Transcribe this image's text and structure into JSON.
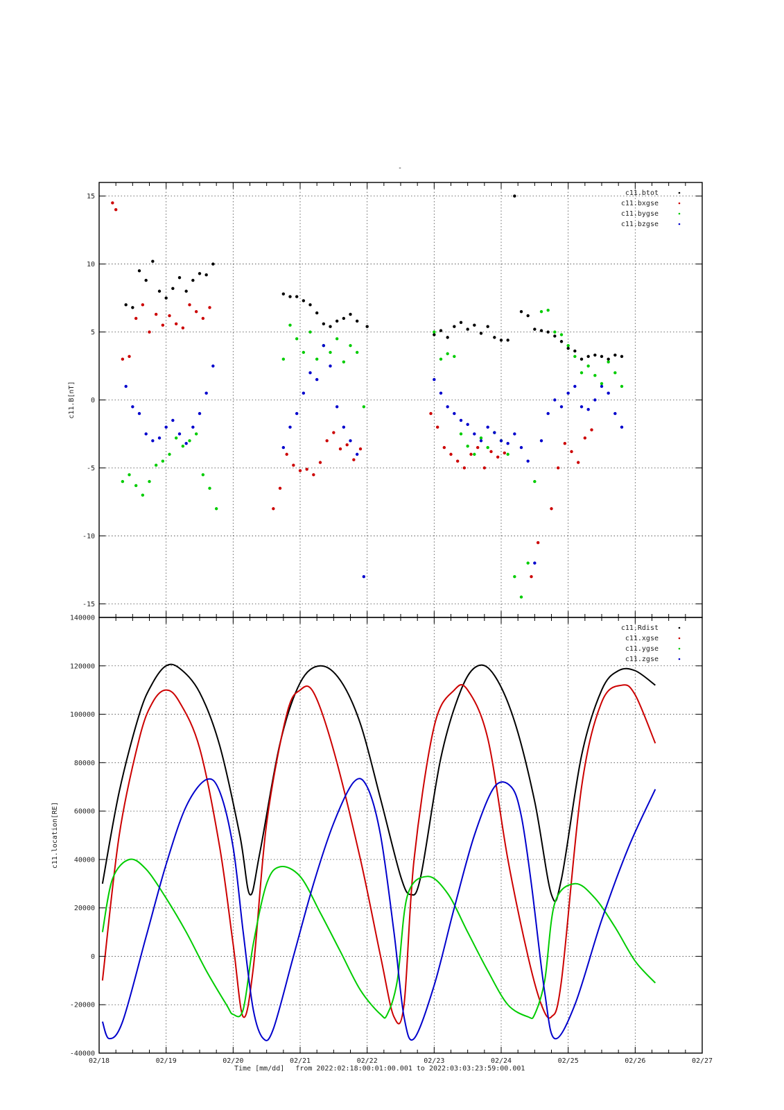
{
  "top_mark": "-",
  "footer": {
    "xlabel_prefix": "Time [mm/dd]",
    "range_text": "from 2022:02:18:00:01:00.001  to  2022:03:03:23:59:00.001"
  },
  "x_axis": {
    "ticks": [
      "02/18",
      "02/19",
      "02/20",
      "02/21",
      "02/22",
      "02/23",
      "02/24",
      "02/25",
      "02/26",
      "02/27"
    ],
    "range_days": [
      0,
      9
    ]
  },
  "chart_data": [
    {
      "type": "scatter",
      "ylabel": "c11.B[nT]",
      "ylim": [
        -16,
        16
      ],
      "yticks": [
        15,
        10,
        5,
        0,
        -5,
        -10,
        -15
      ],
      "grid": true,
      "legend_position": "top-right",
      "series": [
        {
          "name": "c11.btot",
          "color": "#000000",
          "x": [
            0.4,
            0.5,
            0.6,
            0.7,
            0.8,
            0.9,
            1.0,
            1.1,
            1.2,
            1.3,
            1.4,
            1.5,
            1.6,
            1.7,
            2.75,
            2.85,
            2.95,
            3.05,
            3.15,
            3.25,
            3.35,
            3.45,
            3.55,
            3.65,
            3.75,
            3.85,
            4.0,
            5.0,
            5.1,
            5.2,
            5.3,
            5.4,
            5.5,
            5.6,
            5.7,
            5.8,
            5.9,
            6.0,
            6.1,
            6.2,
            6.3,
            6.4,
            6.5,
            6.6,
            6.7,
            6.8,
            6.9,
            7.0,
            7.1,
            7.2,
            7.3,
            7.4,
            7.5,
            7.6,
            7.7,
            7.8
          ],
          "y": [
            7.0,
            6.8,
            9.5,
            8.8,
            10.2,
            8.0,
            7.5,
            8.2,
            9.0,
            8.0,
            8.8,
            9.3,
            9.2,
            10.0,
            7.8,
            7.6,
            7.6,
            7.3,
            7.0,
            6.4,
            5.6,
            5.4,
            5.8,
            6.0,
            6.3,
            5.8,
            5.4,
            4.8,
            5.1,
            4.6,
            5.4,
            5.7,
            5.2,
            5.5,
            4.9,
            5.4,
            4.6,
            4.4,
            4.4,
            15.0,
            6.5,
            6.2,
            5.2,
            5.1,
            5.0,
            4.7,
            4.3,
            3.8,
            3.6,
            3.0,
            3.2,
            3.3,
            3.2,
            3.0,
            3.3,
            3.2
          ]
        },
        {
          "name": "c11.bxgse",
          "color": "#cc0000",
          "x": [
            0.2,
            0.25,
            0.35,
            0.45,
            0.55,
            0.65,
            0.75,
            0.85,
            0.95,
            1.05,
            1.15,
            1.25,
            1.35,
            1.45,
            1.55,
            1.65,
            2.6,
            2.7,
            2.8,
            2.9,
            3.0,
            3.1,
            3.2,
            3.3,
            3.4,
            3.5,
            3.6,
            3.7,
            3.8,
            3.9,
            4.95,
            5.05,
            5.15,
            5.25,
            5.35,
            5.45,
            5.55,
            5.65,
            5.75,
            5.85,
            5.95,
            6.05,
            6.45,
            6.55,
            6.75,
            6.85,
            6.95,
            7.05,
            7.15,
            7.25,
            7.35
          ],
          "y": [
            14.5,
            14.0,
            3.0,
            3.2,
            6.0,
            7.0,
            5.0,
            6.3,
            5.5,
            6.2,
            5.6,
            5.3,
            7.0,
            6.5,
            6.0,
            6.8,
            -8.0,
            -6.5,
            -4.0,
            -4.8,
            -5.2,
            -5.1,
            -5.5,
            -4.6,
            -3.0,
            -2.4,
            -3.6,
            -3.3,
            -4.4,
            -3.6,
            -1.0,
            -2.0,
            -3.5,
            -4.0,
            -4.5,
            -5.0,
            -4.0,
            -3.5,
            -5.0,
            -3.8,
            -4.2,
            -3.9,
            -13.0,
            -10.5,
            -8.0,
            -5.0,
            -3.2,
            -3.8,
            -4.6,
            -2.8,
            -2.2
          ]
        },
        {
          "name": "c11.bygse",
          "color": "#00cc00",
          "x": [
            0.35,
            0.45,
            0.55,
            0.65,
            0.75,
            0.85,
            0.95,
            1.05,
            1.15,
            1.25,
            1.35,
            1.45,
            1.55,
            1.65,
            1.75,
            2.75,
            2.85,
            2.95,
            3.05,
            3.15,
            3.25,
            3.35,
            3.45,
            3.55,
            3.65,
            3.75,
            3.85,
            3.95,
            5.0,
            5.1,
            5.2,
            5.3,
            5.4,
            5.5,
            5.6,
            5.7,
            5.8,
            5.9,
            6.0,
            6.1,
            6.2,
            6.3,
            6.4,
            6.5,
            6.6,
            6.7,
            6.8,
            6.9,
            7.0,
            7.1,
            7.2,
            7.3,
            7.4,
            7.5,
            7.6,
            7.7,
            7.8
          ],
          "y": [
            -6.0,
            -5.5,
            -6.3,
            -7.0,
            -6.0,
            -4.8,
            -4.5,
            -4.0,
            -2.8,
            -3.4,
            -3.0,
            -2.5,
            -5.5,
            -6.5,
            -8.0,
            3.0,
            5.5,
            4.5,
            3.5,
            5.0,
            3.0,
            4.0,
            3.5,
            4.5,
            2.8,
            4.0,
            3.5,
            -0.5,
            5.0,
            3.0,
            3.4,
            3.2,
            -2.5,
            -3.4,
            -4.0,
            -2.8,
            -3.5,
            -2.4,
            -3.0,
            -4.0,
            -13.0,
            -14.5,
            -12.0,
            -6.0,
            6.5,
            6.6,
            5.0,
            4.8,
            4.0,
            3.2,
            2.0,
            2.5,
            1.8,
            1.2,
            2.8,
            2.0,
            1.0
          ]
        },
        {
          "name": "c11.bzgse",
          "color": "#0000cc",
          "x": [
            0.4,
            0.5,
            0.6,
            0.7,
            0.8,
            0.9,
            1.0,
            1.1,
            1.2,
            1.3,
            1.4,
            1.5,
            1.6,
            1.7,
            2.75,
            2.85,
            2.95,
            3.05,
            3.15,
            3.25,
            3.35,
            3.45,
            3.55,
            3.65,
            3.75,
            3.85,
            3.95,
            5.0,
            5.1,
            5.2,
            5.3,
            5.4,
            5.5,
            5.6,
            5.7,
            5.8,
            5.9,
            6.0,
            6.1,
            6.2,
            6.3,
            6.4,
            6.5,
            6.6,
            6.7,
            6.8,
            6.9,
            7.0,
            7.1,
            7.2,
            7.3,
            7.4,
            7.5,
            7.6,
            7.7,
            7.8
          ],
          "y": [
            1.0,
            -0.5,
            -1.0,
            -2.5,
            -3.0,
            -2.8,
            -2.0,
            -1.5,
            -2.5,
            -3.2,
            -2.0,
            -1.0,
            0.5,
            2.5,
            -3.5,
            -2.0,
            -1.0,
            0.5,
            2.0,
            1.5,
            4.0,
            2.5,
            -0.5,
            -2.0,
            -3.0,
            -4.0,
            -13.0,
            1.5,
            0.5,
            -0.5,
            -1.0,
            -1.5,
            -1.8,
            -2.5,
            -3.0,
            -2.0,
            -2.4,
            -3.0,
            -3.2,
            -2.5,
            -3.5,
            -4.5,
            -12.0,
            -3.0,
            -1.0,
            0.0,
            -0.5,
            0.5,
            1.0,
            -0.5,
            -0.7,
            0.0,
            1.0,
            0.5,
            -1.0,
            -2.0
          ]
        }
      ]
    },
    {
      "type": "line",
      "ylabel": "c11.location[RE]",
      "ylim": [
        -40000,
        140000
      ],
      "yticks": [
        140000,
        120000,
        100000,
        80000,
        60000,
        40000,
        20000,
        0,
        -20000,
        -40000
      ],
      "grid": true,
      "legend_position": "top-right",
      "series": [
        {
          "name": "c11.Rdist",
          "color": "#000000",
          "x": [
            0.05,
            0.3,
            0.6,
            0.8,
            1.0,
            1.2,
            1.5,
            1.8,
            2.1,
            2.25,
            2.4,
            2.7,
            3.0,
            3.3,
            3.6,
            3.9,
            4.2,
            4.5,
            4.65,
            4.8,
            5.1,
            5.4,
            5.65,
            5.9,
            6.2,
            6.5,
            6.75,
            6.9,
            7.2,
            7.5,
            7.75,
            8.0,
            8.3
          ],
          "y": [
            30000,
            68000,
            100000,
            113000,
            120000,
            119000,
            109000,
            87000,
            50000,
            25500,
            43000,
            88000,
            113000,
            120000,
            114000,
            96000,
            65000,
            33000,
            25500,
            33000,
            82000,
            110000,
            120000,
            116000,
            97000,
            64000,
            25500,
            32000,
            83000,
            110000,
            118000,
            118000,
            112000
          ]
        },
        {
          "name": "c11.xgse",
          "color": "#cc0000",
          "x": [
            0.05,
            0.3,
            0.6,
            0.8,
            1.0,
            1.2,
            1.5,
            1.8,
            2.0,
            2.15,
            2.3,
            2.5,
            2.8,
            3.0,
            3.2,
            3.5,
            3.9,
            4.2,
            4.4,
            4.55,
            4.7,
            5.0,
            5.3,
            5.5,
            5.8,
            6.1,
            6.4,
            6.6,
            6.75,
            6.9,
            7.2,
            7.5,
            7.8,
            8.0,
            8.3
          ],
          "y": [
            -10000,
            50000,
            90000,
            105000,
            110000,
            105000,
            86000,
            45000,
            5000,
            -25000,
            -5000,
            55000,
            100000,
            110000,
            109000,
            85000,
            40000,
            0,
            -25000,
            -20000,
            40000,
            95000,
            110000,
            110000,
            90000,
            40000,
            0,
            -20000,
            -25000,
            -10000,
            70000,
            105000,
            112000,
            108000,
            88000
          ]
        },
        {
          "name": "c11.ygse",
          "color": "#00cc00",
          "x": [
            0.05,
            0.2,
            0.45,
            0.7,
            1.0,
            1.3,
            1.6,
            1.9,
            2.0,
            2.15,
            2.3,
            2.5,
            2.7,
            3.0,
            3.3,
            3.6,
            3.9,
            4.2,
            4.3,
            4.45,
            4.6,
            4.9,
            5.2,
            5.5,
            5.8,
            6.1,
            6.4,
            6.5,
            6.65,
            6.8,
            7.1,
            7.4,
            7.7,
            8.0,
            8.3
          ],
          "y": [
            10000,
            32000,
            40000,
            36000,
            24000,
            10000,
            -6000,
            -20000,
            -24000,
            -22000,
            5000,
            30000,
            37000,
            33000,
            18000,
            2000,
            -14000,
            -24000,
            -24000,
            -10000,
            25000,
            33000,
            26000,
            10000,
            -6000,
            -20000,
            -25000,
            -24000,
            -10000,
            22000,
            30000,
            24000,
            12000,
            -2000,
            -11000
          ]
        },
        {
          "name": "c11.zgse",
          "color": "#0000cc",
          "x": [
            0.05,
            0.15,
            0.35,
            0.7,
            1.0,
            1.3,
            1.6,
            1.8,
            2.0,
            2.15,
            2.3,
            2.45,
            2.6,
            2.9,
            3.2,
            3.5,
            3.8,
            4.0,
            4.2,
            4.4,
            4.55,
            4.7,
            5.0,
            5.3,
            5.6,
            5.9,
            6.15,
            6.3,
            6.45,
            6.65,
            6.8,
            7.1,
            7.5,
            7.9,
            8.3
          ],
          "y": [
            -27000,
            -34000,
            -27000,
            8000,
            38000,
            62000,
            73000,
            68000,
            45000,
            10000,
            -22000,
            -34000,
            -30000,
            0,
            30000,
            55000,
            72000,
            70000,
            50000,
            10000,
            -25000,
            -34000,
            -12000,
            20000,
            50000,
            70000,
            70000,
            58000,
            30000,
            -15000,
            -34000,
            -20000,
            15000,
            45000,
            69000
          ]
        }
      ]
    }
  ]
}
